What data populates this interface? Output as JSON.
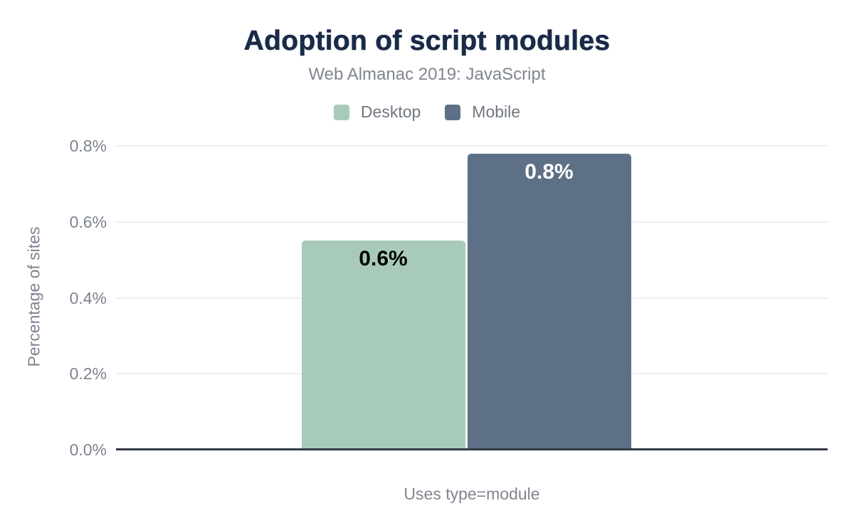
{
  "header": {
    "title": "Adoption of script modules",
    "subtitle": "Web Almanac 2019: JavaScript"
  },
  "legend": {
    "items": [
      {
        "label": "Desktop",
        "color": "#a8cbb9"
      },
      {
        "label": "Mobile",
        "color": "#5e7086"
      }
    ]
  },
  "axes": {
    "y_title": "Percentage of sites",
    "x_title": "Uses type=module",
    "ytick_labels": [
      "0.0%",
      "0.2%",
      "0.4%",
      "0.6%",
      "0.8%"
    ]
  },
  "chart_data": {
    "type": "bar",
    "title": "Adoption of script modules",
    "subtitle": "Web Almanac 2019: JavaScript",
    "categories": [
      "Uses type=module"
    ],
    "series": [
      {
        "name": "Desktop",
        "values": [
          0.55
        ],
        "data_labels": [
          "0.6%"
        ],
        "color": "#a8cbb9",
        "data_label_color": "#000000"
      },
      {
        "name": "Mobile",
        "values": [
          0.78
        ],
        "data_labels": [
          "0.8%"
        ],
        "color": "#5e7086",
        "data_label_color": "#ffffff"
      }
    ],
    "xlabel": "Uses type=module",
    "ylabel": "Percentage of sites",
    "ylim": [
      0,
      0.8
    ],
    "yticks": [
      0.0,
      0.2,
      0.4,
      0.6,
      0.8
    ],
    "ytick_labels": [
      "0.0%",
      "0.2%",
      "0.4%",
      "0.6%",
      "0.8%"
    ],
    "grid": true,
    "legend_position": "top",
    "unit": "percent of sites"
  },
  "colors": {
    "title": "#1a2b49",
    "subtitle": "#80868e",
    "axis_text": "#7d8490",
    "gridline": "#f0f0f0",
    "axis_line": "#333a44",
    "background": "#ffffff"
  }
}
